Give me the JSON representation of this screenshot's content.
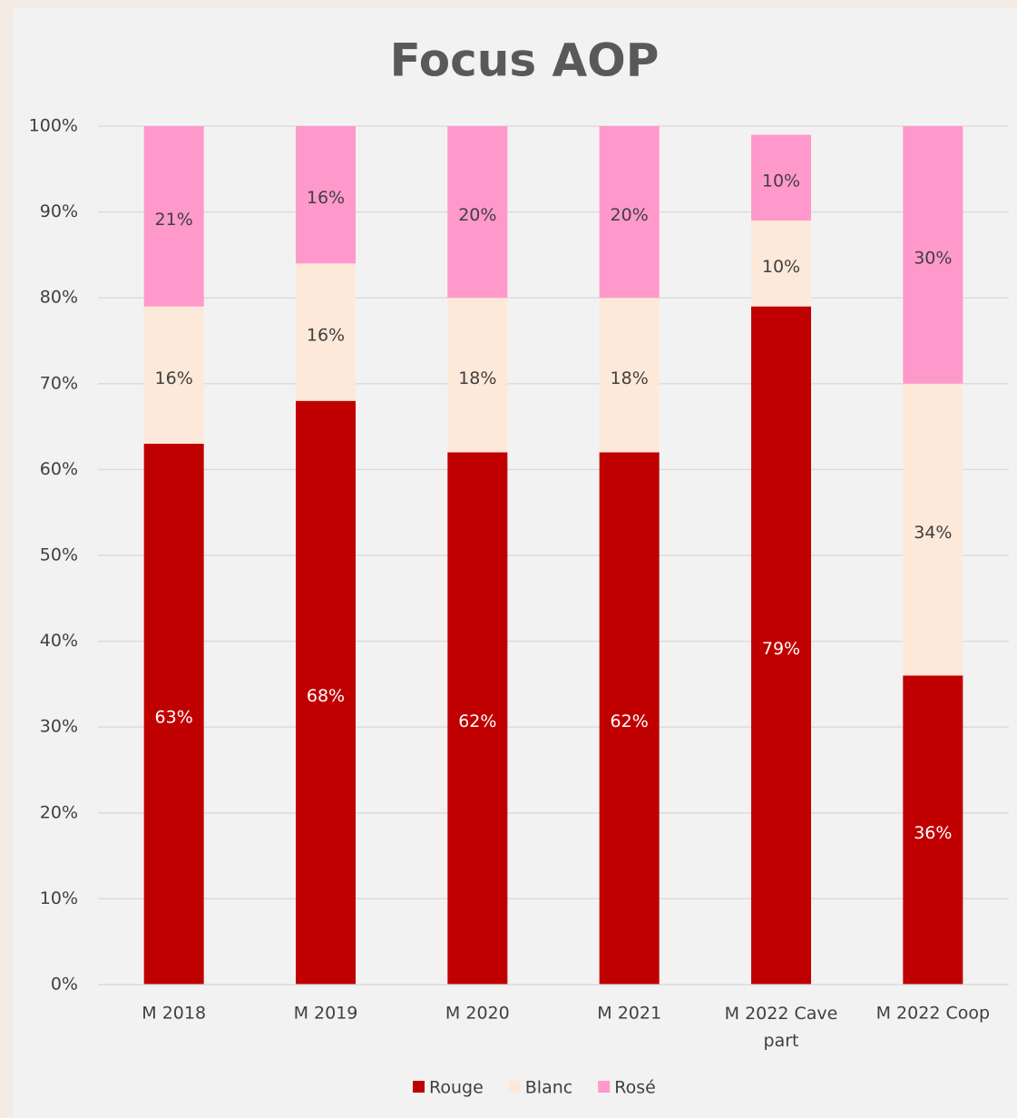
{
  "chart_data": {
    "type": "bar",
    "stacked": true,
    "title": "Focus AOP",
    "categories": [
      "M 2018",
      "M 2019",
      "M 2020",
      "M 2021",
      "M 2022 Cave part",
      "M 2022 Coop"
    ],
    "series": [
      {
        "name": "Rouge",
        "color": "#c00000",
        "values": [
          63,
          68,
          62,
          62,
          79,
          36
        ],
        "value_labels": [
          "63%",
          "68%",
          "62%",
          "62%",
          "79%",
          "36%"
        ]
      },
      {
        "name": "Blanc",
        "color": "#fde9d9",
        "values": [
          16,
          16,
          18,
          18,
          10,
          34
        ],
        "value_labels": [
          "16%",
          "16%",
          "18%",
          "18%",
          "10%",
          "34%"
        ]
      },
      {
        "name": "Rosé",
        "color": "#ff99cc",
        "values": [
          21,
          16,
          20,
          20,
          10,
          30
        ],
        "value_labels": [
          "21%",
          "16%",
          "20%",
          "20%",
          "10%",
          "30%"
        ]
      }
    ],
    "ylim": [
      0,
      100
    ],
    "yticks": [
      {
        "value": 0,
        "label": "0%"
      },
      {
        "value": 10,
        "label": "10%"
      },
      {
        "value": 20,
        "label": "20%"
      },
      {
        "value": 30,
        "label": "30%"
      },
      {
        "value": 40,
        "label": "40%"
      },
      {
        "value": 50,
        "label": "50%"
      },
      {
        "value": 60,
        "label": "60%"
      },
      {
        "value": 70,
        "label": "70%"
      },
      {
        "value": 80,
        "label": "80%"
      },
      {
        "value": 90,
        "label": "90%"
      },
      {
        "value": 100,
        "label": "100%"
      }
    ],
    "grid": true,
    "legend": "bottom"
  }
}
